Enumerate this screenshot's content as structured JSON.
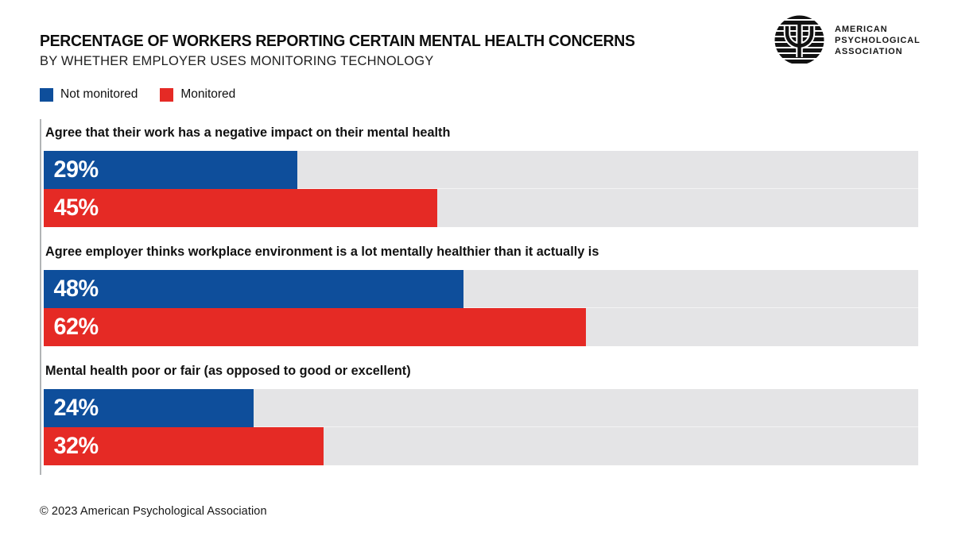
{
  "header": {
    "title": "PERCENTAGE OF WORKERS REPORTING CERTAIN MENTAL HEALTH CONCERNS",
    "subtitle": "BY WHETHER EMPLOYER USES MONITORING TECHNOLOGY"
  },
  "logo": {
    "symbol": "psi-icon",
    "org_lines": [
      "AMERICAN",
      "PSYCHOLOGICAL",
      "ASSOCIATION"
    ]
  },
  "legend": [
    {
      "label": "Not monitored",
      "color": "#0e4e9b"
    },
    {
      "label": "Monitored",
      "color": "#e52a25"
    }
  ],
  "chart_data": {
    "type": "bar",
    "orientation": "horizontal",
    "title": "PERCENTAGE OF WORKERS REPORTING CERTAIN MENTAL HEALTH CONCERNS",
    "subtitle": "BY WHETHER EMPLOYER USES MONITORING TECHNOLOGY",
    "categories": [
      "Agree that their work has a negative impact on their mental health",
      "Agree employer thinks workplace environment is a lot mentally healthier than it actually is",
      "Mental health poor or fair (as opposed to good or excellent)"
    ],
    "series": [
      {
        "name": "Not monitored",
        "color": "#0e4e9b",
        "values": [
          29,
          48,
          24
        ]
      },
      {
        "name": "Monitored",
        "color": "#e52a25",
        "values": [
          45,
          62,
          32
        ]
      }
    ],
    "value_suffix": "%",
    "xlim": [
      0,
      100
    ],
    "grid": false,
    "legend_position": "top-left",
    "track_color": "#e4e4e6"
  },
  "footer": {
    "copyright": "© 2023 American Psychological Association"
  }
}
